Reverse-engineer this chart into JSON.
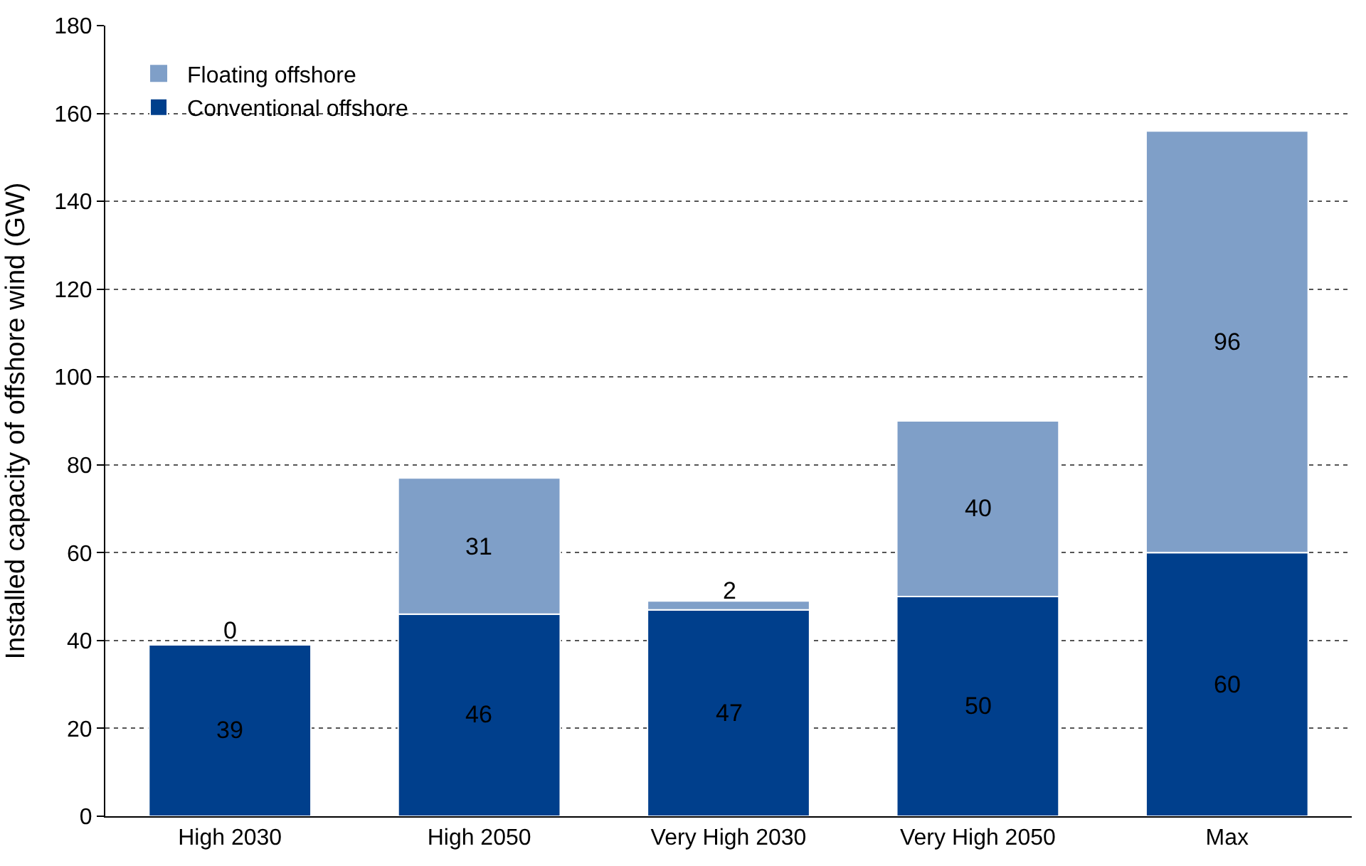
{
  "chart_data": {
    "type": "bar",
    "stacked": true,
    "ylabel": "Installed capacity of offshore wind (GW)",
    "categories": [
      "High 2030",
      "High 2050",
      "Very High 2030",
      "Very High 2050",
      "Max"
    ],
    "series": [
      {
        "name": "Conventional offshore",
        "color": "#003f8c",
        "values": [
          39,
          46,
          47,
          50,
          60
        ]
      },
      {
        "name": "Floating offshore",
        "color": "#7f9fc8",
        "values": [
          0,
          31,
          2,
          40,
          96
        ]
      }
    ],
    "ylim": [
      0,
      180
    ],
    "yticks": [
      0,
      20,
      40,
      60,
      80,
      100,
      120,
      140,
      160,
      180
    ],
    "grid": "y",
    "legend": "top left",
    "data_labels": true
  }
}
